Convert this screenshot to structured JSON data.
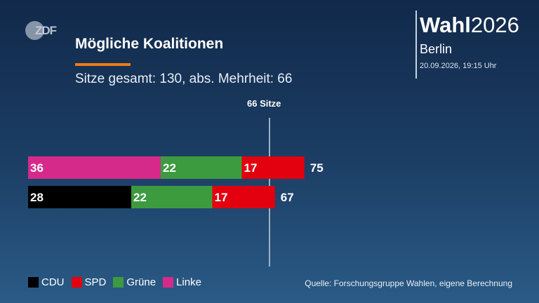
{
  "broadcaster": {
    "logo_text": "ZDF"
  },
  "header": {
    "title": "Mögliche Koalitionen",
    "subtitle": "Sitze gesamt: 130, abs. Mehrheit: 66"
  },
  "brand": {
    "wahl": "Wahl",
    "year": "2026",
    "city": "Berlin",
    "timestamp": "20.09.2026, 19:15 Uhr"
  },
  "threshold": {
    "label": "66 Sitze",
    "value": 66
  },
  "source": "Quelle: Forschungsgruppe Wahlen, eigene Berechnung",
  "chart_data": {
    "type": "bar",
    "orientation": "horizontal",
    "stacked": true,
    "total_seats": 130,
    "majority": 66,
    "parties": [
      {
        "name": "CDU",
        "color": "#000000"
      },
      {
        "name": "SPD",
        "color": "#e3000f"
      },
      {
        "name": "Grüne",
        "color": "#3d9b3f"
      },
      {
        "name": "Linke",
        "color": "#d62a8a"
      }
    ],
    "rows": [
      {
        "segments": [
          {
            "party": "Linke",
            "value": 36
          },
          {
            "party": "Grüne",
            "value": 22
          },
          {
            "party": "SPD",
            "value": 17
          }
        ],
        "total": 75
      },
      {
        "segments": [
          {
            "party": "CDU",
            "value": 28
          },
          {
            "party": "Grüne",
            "value": 22
          },
          {
            "party": "SPD",
            "value": 17
          }
        ],
        "total": 67
      }
    ],
    "legend": [
      "CDU",
      "SPD",
      "Grüne",
      "Linke"
    ],
    "legend_position": "bottom-left",
    "xlim": [
      0,
      75
    ]
  }
}
